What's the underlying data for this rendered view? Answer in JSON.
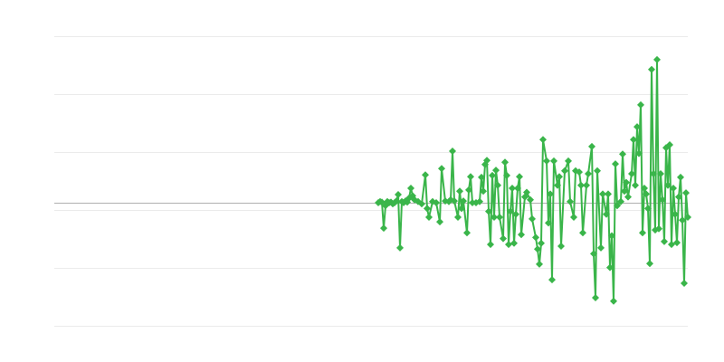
{
  "chart_data": {
    "type": "line",
    "title": "",
    "xlabel": "",
    "ylabel": "",
    "xlim": [
      0,
      350
    ],
    "ylim": [
      -2.125,
      2.875
    ],
    "grid": true,
    "gridlines_y": [
      2.875,
      1.875,
      0.875,
      -0.125,
      -1.125,
      -2.125
    ],
    "baseline_y": 0,
    "marker": "diamond",
    "colors": {
      "series": "#3ab54a",
      "grid": "#ebebeb",
      "baseline": "#b0b0b0"
    },
    "series": [
      {
        "x": [
          179,
          180,
          181,
          182,
          183,
          184,
          185,
          186,
          187,
          188,
          189,
          190,
          191,
          192,
          193,
          194,
          195,
          196,
          197,
          198,
          199,
          201,
          203,
          205,
          206,
          207,
          209,
          211,
          213,
          214,
          216,
          218,
          219,
          220,
          221,
          223,
          224,
          225,
          226,
          228,
          229,
          230,
          231,
          233,
          235,
          236,
          237,
          238,
          239,
          240,
          241,
          242,
          243,
          244,
          245,
          246,
          248,
          249,
          250,
          251,
          252,
          253,
          254,
          255,
          256,
          257,
          258,
          260,
          261,
          263,
          264,
          266,
          267,
          268,
          269,
          270,
          272,
          273,
          274,
          275,
          276,
          278,
          279,
          280,
          282,
          284,
          285,
          287,
          288,
          290,
          291,
          292,
          294,
          295,
          297,
          298,
          299,
          300,
          302,
          303,
          305,
          306,
          307,
          308,
          309,
          310,
          311,
          313,
          314,
          315,
          316,
          317,
          319,
          320,
          321,
          322,
          323,
          324,
          325,
          326,
          327,
          328,
          329,
          330,
          331,
          332,
          333,
          334,
          335,
          336,
          337,
          338,
          339,
          340,
          341,
          342,
          343,
          344,
          345,
          346,
          347,
          348,
          349,
          350
        ],
        "y": [
          0,
          0.02,
          0.01,
          -0.44,
          -0.05,
          0.02,
          0,
          0.01,
          -0.02,
          0,
          0.03,
          0.14,
          -0.78,
          0.02,
          0,
          0.03,
          0.01,
          0.08,
          0.25,
          0.12,
          0.05,
          0.02,
          -0.02,
          0.48,
          -0.1,
          -0.25,
          0.02,
          0,
          -0.33,
          0.59,
          0.03,
          0.02,
          0.05,
          0.89,
          0.03,
          -0.25,
          0.2,
          -0.1,
          0.03,
          -0.52,
          0.22,
          0.45,
          0,
          0,
          0.02,
          0.44,
          0.2,
          0.66,
          0.73,
          -0.15,
          -0.72,
          0.47,
          -0.25,
          0.56,
          0.3,
          -0.25,
          -0.62,
          0.7,
          0.47,
          -0.72,
          -0.15,
          0.25,
          -0.7,
          -0.2,
          0.25,
          0.45,
          -0.55,
          0.1,
          0.18,
          0.05,
          -0.28,
          -0.6,
          -0.8,
          -1.06,
          -0.7,
          1.09,
          0.72,
          -0.35,
          0.15,
          -1.33,
          0.72,
          0.3,
          0.45,
          -0.75,
          0.55,
          0.72,
          0.02,
          -0.25,
          0.55,
          0.53,
          0.3,
          -0.52,
          0.3,
          0.5,
          0.97,
          -0.88,
          -1.64,
          0.55,
          -0.78,
          0.15,
          -0.2,
          0.15,
          -1.12,
          -0.57,
          -1.7,
          0.67,
          -0.05,
          0.02,
          0.84,
          0.2,
          0.35,
          0.1,
          0.5,
          1.09,
          0.3,
          1.31,
          0.85,
          1.69,
          -0.52,
          0.25,
          0.15,
          -0.1,
          -1.05,
          2.3,
          0.5,
          -0.47,
          2.47,
          -0.45,
          0.5,
          0.05,
          -0.67,
          0.95,
          0.3,
          1.0,
          -0.72,
          0.25,
          -0.2,
          -0.69,
          0.1,
          0.44,
          -0.3,
          -1.39,
          0.17,
          -0.25
        ]
      }
    ]
  }
}
